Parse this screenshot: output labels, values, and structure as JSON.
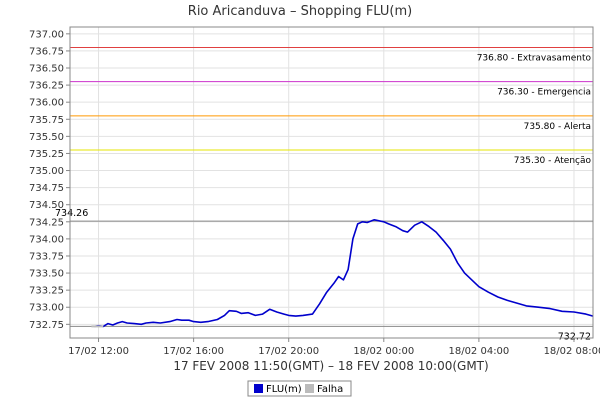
{
  "chart_data": {
    "type": "line",
    "title": "Rio Aricanduva – Shopping FLU(m)",
    "xlabel": "17 FEV 2008 11:50(GMT) – 18 FEV 2008 10:00(GMT)",
    "ylabel": "",
    "x_range_hours": [
      10.8,
      32.8
    ],
    "ylim": [
      732.55,
      737.1
    ],
    "y_ticks": [
      "732.75",
      "733.00",
      "733.25",
      "733.50",
      "733.75",
      "734.00",
      "734.25",
      "734.50",
      "734.75",
      "735.00",
      "735.25",
      "735.50",
      "735.75",
      "736.00",
      "736.25",
      "736.50",
      "736.75",
      "737.00"
    ],
    "x_ticks": [
      {
        "hour": 12,
        "label": "17/02 12:00"
      },
      {
        "hour": 16,
        "label": "17/02 16:00"
      },
      {
        "hour": 20,
        "label": "17/02 20:00"
      },
      {
        "hour": 24,
        "label": "18/02 00:00"
      },
      {
        "hour": 28,
        "label": "18/02 04:00"
      },
      {
        "hour": 32,
        "label": "18/02 08:00"
      }
    ],
    "reference_lines": [
      {
        "value": 736.8,
        "label": "736.80 - Extravasamento",
        "color": "#e04040"
      },
      {
        "value": 736.3,
        "label": "736.30 - Emergencia",
        "color": "#cc33cc"
      },
      {
        "value": 735.8,
        "label": "735.80 - Alerta",
        "color": "#ff9900"
      },
      {
        "value": 735.3,
        "label": "735.30 - Atenção",
        "color": "#e6e600"
      },
      {
        "value": 734.26,
        "label": "734.26",
        "color": "#888888"
      },
      {
        "value": 732.72,
        "label": "732.72",
        "color": "#888888"
      }
    ],
    "series": [
      {
        "name": "FLU(m)",
        "color": "#0000cc",
        "x": [
          11.83,
          12.0,
          12.2,
          12.4,
          12.6,
          12.8,
          13.0,
          13.2,
          13.5,
          13.8,
          14.0,
          14.3,
          14.6,
          15.0,
          15.3,
          15.5,
          15.8,
          16.0,
          16.3,
          16.6,
          17.0,
          17.3,
          17.5,
          17.8,
          18.0,
          18.3,
          18.6,
          18.9,
          19.2,
          19.5,
          19.8,
          20.0,
          20.3,
          20.6,
          21.0,
          21.3,
          21.6,
          21.9,
          22.1,
          22.3,
          22.5,
          22.7,
          22.9,
          23.1,
          23.3,
          23.6,
          24.0,
          24.2,
          24.5,
          24.8,
          25.0,
          25.3,
          25.6,
          25.9,
          26.2,
          26.5,
          26.8,
          27.1,
          27.4,
          27.7,
          28.0,
          28.4,
          28.8,
          29.2,
          29.6,
          30.0,
          30.5,
          31.0,
          31.5,
          32.0,
          32.5,
          32.8
        ],
        "values": [
          732.72,
          732.73,
          732.72,
          732.76,
          732.74,
          732.77,
          732.79,
          732.77,
          732.76,
          732.75,
          732.77,
          732.78,
          732.77,
          732.79,
          732.82,
          732.81,
          732.81,
          732.79,
          732.78,
          732.79,
          732.82,
          732.88,
          732.95,
          732.94,
          732.91,
          732.92,
          732.88,
          732.9,
          732.97,
          732.93,
          732.9,
          732.88,
          732.87,
          732.88,
          732.9,
          733.05,
          733.22,
          733.35,
          733.45,
          733.4,
          733.55,
          734.0,
          734.22,
          734.25,
          734.24,
          734.28,
          734.25,
          734.22,
          734.18,
          734.12,
          734.1,
          734.2,
          734.25,
          734.18,
          734.1,
          733.98,
          733.85,
          733.65,
          733.5,
          733.4,
          733.3,
          733.22,
          733.15,
          733.1,
          733.06,
          733.02,
          733.0,
          732.98,
          732.94,
          732.93,
          732.9,
          732.87
        ]
      },
      {
        "name": "Falha",
        "color": "#bbbbbb",
        "x": [],
        "values": []
      }
    ],
    "legend_position": "bottom-center",
    "grid": true
  }
}
